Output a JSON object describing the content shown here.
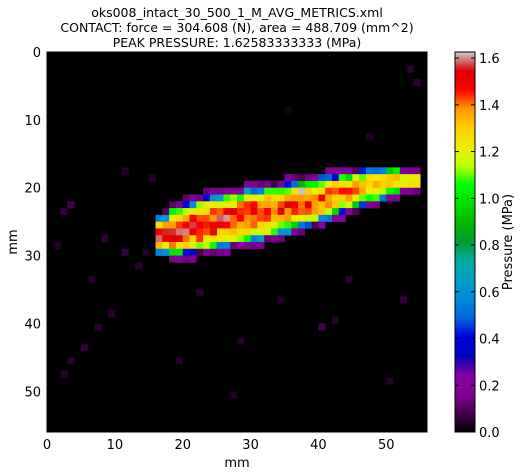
{
  "chart": {
    "title_lines": [
      "oks008_intact_30_500_1_M_AVG_METRICS.xml",
      "CONTACT: force = 304.608 (N), area = 488.709 (mm^2)",
      "PEAK PRESSURE: 1.62583333333 (MPa)"
    ]
  },
  "colors": {
    "background": "#000000",
    "colormap": "nipy_spectral"
  },
  "chart_data": {
    "type": "heatmap",
    "title": "oks008_intact_30_500_1_M_AVG_METRICS.xml\nCONTACT: force = 304.608 (N), area = 488.709 (mm^2)\nPEAK PRESSURE: 1.62583333333 (MPa)",
    "xlabel": "mm",
    "ylabel": "mm",
    "colorbar_label": "Pressure (MPa)",
    "x_range": [
      0,
      56
    ],
    "y_range": [
      0,
      56
    ],
    "y_inverted": true,
    "x_ticks": [
      0,
      10,
      20,
      30,
      40,
      50
    ],
    "y_ticks": [
      0,
      10,
      20,
      30,
      40,
      50
    ],
    "colorbar_range": [
      0.0,
      1.626
    ],
    "colorbar_ticks": [
      0.0,
      0.2,
      0.4,
      0.6,
      0.8,
      1.0,
      1.2,
      1.4,
      1.6
    ],
    "colorbar_tick_labels": [
      "0.0",
      "0.2",
      "0.4",
      "0.6",
      "0.8",
      "1.0",
      "1.2",
      "1.4",
      "1.6"
    ],
    "x_tick_labels": [
      "0",
      "10",
      "20",
      "30",
      "40",
      "50"
    ],
    "y_tick_labels": [
      "0",
      "10",
      "20",
      "30",
      "40",
      "50"
    ],
    "peak_pressure": 1.62583333333,
    "grid": false,
    "contact_region": {
      "description": "elongated high-pressure patch",
      "centerline": [
        [
          17,
          27.0
        ],
        [
          24,
          25.2
        ],
        [
          32,
          23.8
        ],
        [
          40,
          21.8
        ],
        [
          47,
          20.0
        ],
        [
          52,
          19.0
        ]
      ],
      "half_widths_rows": [
        3.6,
        4.0,
        3.8,
        3.3,
        2.6,
        2.0
      ]
    },
    "noise_cells": [
      [
        3,
        22,
        0.08
      ],
      [
        2,
        23,
        0.06
      ],
      [
        8,
        27,
        0.05
      ],
      [
        11,
        29,
        0.06
      ],
      [
        1,
        28,
        0.04
      ],
      [
        9,
        38,
        0.05
      ],
      [
        7,
        40,
        0.05
      ],
      [
        5,
        43,
        0.06
      ],
      [
        3,
        45,
        0.05
      ],
      [
        2,
        47,
        0.05
      ],
      [
        40,
        40,
        0.08
      ],
      [
        42,
        39,
        0.05
      ],
      [
        52,
        36,
        0.06
      ],
      [
        53,
        2,
        0.05
      ],
      [
        54,
        4,
        0.05
      ],
      [
        11,
        17,
        0.04
      ],
      [
        22,
        35,
        0.05
      ],
      [
        27,
        50,
        0.04
      ],
      [
        15,
        18,
        0.04
      ],
      [
        13,
        31,
        0.05
      ],
      [
        14,
        29,
        0.04
      ],
      [
        35,
        8,
        0.03
      ],
      [
        47,
        12,
        0.04
      ],
      [
        28,
        42,
        0.04
      ],
      [
        50,
        48,
        0.04
      ],
      [
        6,
        33,
        0.04
      ],
      [
        44,
        33,
        0.05
      ],
      [
        34,
        36,
        0.04
      ],
      [
        19,
        45,
        0.04
      ]
    ]
  }
}
